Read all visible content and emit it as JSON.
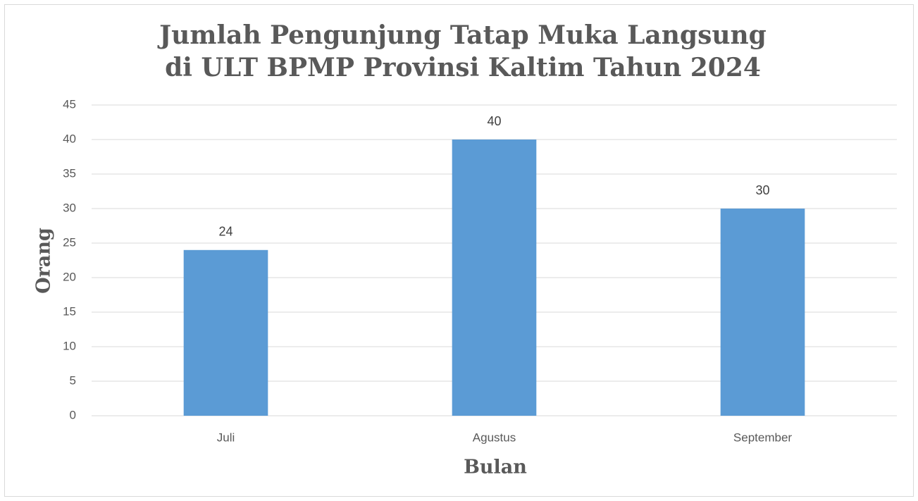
{
  "chart_data": {
    "type": "bar",
    "title": [
      "Jumlah Pengunjung Tatap Muka Langsung",
      "di ULT BPMP Provinsi Kaltim Tahun 2024"
    ],
    "x_label": "Bulan",
    "y_label": "Orang",
    "categories": [
      "Juli",
      "Agustus",
      "September"
    ],
    "values": [
      24,
      40,
      30
    ],
    "color": "#5b9bd5",
    "ylim": [
      0,
      45
    ],
    "yticks": [
      0,
      5,
      10,
      15,
      20,
      25,
      30,
      35,
      40,
      45
    ],
    "grid": true
  }
}
